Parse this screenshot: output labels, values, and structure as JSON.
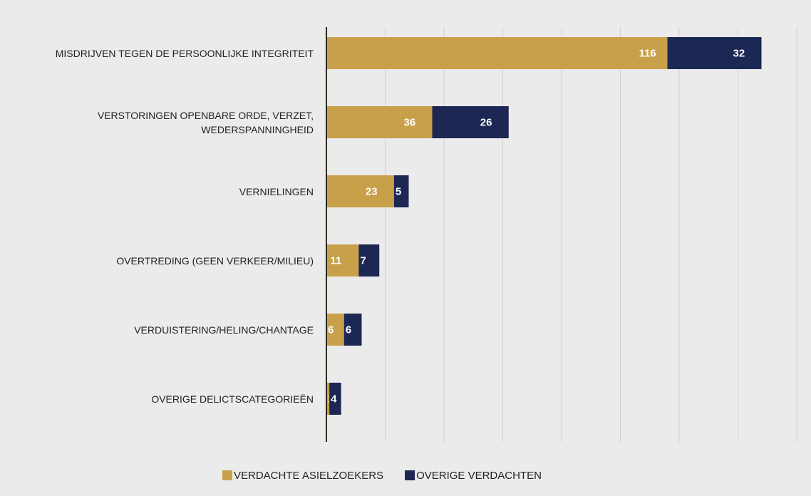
{
  "chart_data": {
    "type": "bar",
    "orientation": "horizontal",
    "stacked": true,
    "categories": [
      "MISDRIJVEN TEGEN DE PERSOONLIJKE INTEGRITEIT",
      "VERSTORINGEN OPENBARE ORDE, VERZET, WEDERSPANNINGHEID",
      "VERNIELINGEN",
      "OVERTREDING (GEEN VERKEER/MILIEU)",
      "VERDUISTERING/HELING/CHANTAGE",
      "OVERIGE DELICTSCATEGORIEËN"
    ],
    "series": [
      {
        "name": "VERDACHTE ASIELZOEKERS",
        "color": "#c9a04a",
        "values": [
          116,
          36,
          23,
          11,
          6,
          1
        ]
      },
      {
        "name": "OVERIGE VERDACHTEN",
        "color": "#1c2753",
        "values": [
          32,
          26,
          5,
          7,
          6,
          4
        ]
      }
    ],
    "xlim": [
      0,
      160
    ],
    "xticks": [
      0,
      20,
      40,
      60,
      80,
      100,
      120,
      140,
      160
    ],
    "grid": true
  }
}
